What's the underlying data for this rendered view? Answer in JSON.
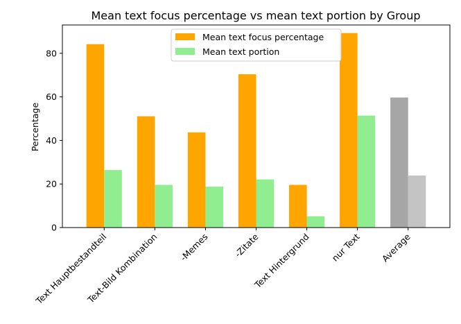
{
  "chart_data": {
    "type": "bar",
    "title": "Mean text focus percentage vs mean text portion by Group",
    "xlabel": "",
    "ylabel": "Percentage",
    "ylim": [
      0,
      93
    ],
    "yticks": [
      0,
      20,
      40,
      60,
      80
    ],
    "categories": [
      "Text Hauptbestandteil",
      "Text-Bild Kombination",
      "-Memes",
      "-Zitate",
      "Text Hintergrund",
      "nur Text",
      "Average"
    ],
    "series": [
      {
        "name": "Mean text focus percentage",
        "color": "#FFA500",
        "values": [
          84.2,
          51.1,
          43.7,
          70.4,
          19.6,
          89.3,
          59.7
        ]
      },
      {
        "name": "Mean text portion",
        "color": "#90EE90",
        "values": [
          26.4,
          19.6,
          18.8,
          22.1,
          5.2,
          51.4,
          23.9
        ]
      }
    ],
    "average_colors": [
      "#A6A6A6",
      "#C4C4C4"
    ],
    "legend_position": "top-center",
    "grid": false
  }
}
